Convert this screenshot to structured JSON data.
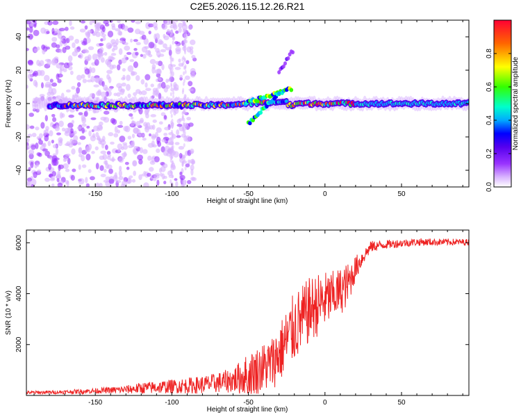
{
  "title": "C2E5.2026.115.12.26.R21",
  "chart_data": [
    {
      "type": "heatmap",
      "name": "doppler-spectrogram",
      "xlabel": "Height of straight line (km)",
      "ylabel": "Frequency (Hz)",
      "xlim": [
        -195,
        94
      ],
      "ylim": [
        -50,
        50
      ],
      "xticks": [
        -150,
        -100,
        -50,
        0,
        50
      ],
      "yticks": [
        -40,
        -20,
        0,
        20,
        40
      ],
      "tick_labels_x": [
        "-150",
        "-100",
        "-50",
        "0",
        "50"
      ],
      "tick_labels_y": [
        "-40",
        "-20",
        "0",
        "20",
        "40"
      ],
      "colorbar": {
        "label": "Normalized spectral amplitude",
        "range": [
          0,
          1
        ],
        "ticks": [
          0.0,
          0.2,
          0.4,
          0.6,
          0.8
        ],
        "tick_labels": [
          "0.0",
          "0.2",
          "0.4",
          "0.6",
          "0.8"
        ],
        "colors": [
          "#ffffff",
          "#d9b3ff",
          "#9933ff",
          "#5500ee",
          "#0000ff",
          "#00aaff",
          "#00ffcc",
          "#33ff00",
          "#ffff00",
          "#ff6600",
          "#ff0033"
        ]
      },
      "features": [
        {
          "name": "main-band",
          "x": [
            -175,
            94
          ],
          "frequency": 0,
          "description": "signal ridge near 0 Hz"
        },
        {
          "name": "branch-upper",
          "x": [
            -50,
            -22
          ],
          "frequency": [
            0,
            32
          ]
        },
        {
          "name": "branch-lower",
          "x": [
            -50,
            -30
          ],
          "frequency": [
            -12,
            8
          ]
        }
      ]
    },
    {
      "type": "line",
      "name": "snr-profile",
      "xlabel": "Height of straight line (km)",
      "ylabel": "SNR (10 * v/v)",
      "xlim": [
        -195,
        94
      ],
      "ylim": [
        0,
        6500
      ],
      "xticks": [
        -150,
        -100,
        -50,
        0,
        50
      ],
      "yticks": [
        2000,
        4000,
        6000
      ],
      "tick_labels_x": [
        "-150",
        "-100",
        "-50",
        "0",
        "50"
      ],
      "tick_labels_y": [
        "2000",
        "4000",
        "6000"
      ],
      "series_color": "#ee2222",
      "series": [
        {
          "name": "SNR",
          "envelope": {
            "x": [
              -195,
              -170,
              -140,
              -130,
              -120,
              -100,
              -80,
              -70,
              -60,
              -50,
              -40,
              -35,
              -30,
              -25,
              -20,
              -15,
              -10,
              -5,
              0,
              5,
              10,
              15,
              20,
              25,
              30,
              40,
              60,
              94
            ],
            "base": [
              100,
              120,
              180,
              200,
              240,
              300,
              350,
              420,
              500,
              650,
              900,
              1050,
              1400,
              1900,
              2400,
              2700,
              3100,
              3300,
              3500,
              3700,
              3900,
              4200,
              4900,
              5400,
              5800,
              5900,
              6000,
              6000
            ],
            "amp": [
              120,
              150,
              250,
              320,
              450,
              550,
              700,
              800,
              1000,
              1700,
              2000,
              2100,
              2400,
              2600,
              2800,
              2700,
              2600,
              2500,
              2300,
              2000,
              1900,
              1700,
              1000,
              600,
              450,
              350,
              300,
              250
            ]
          }
        }
      ]
    }
  ]
}
